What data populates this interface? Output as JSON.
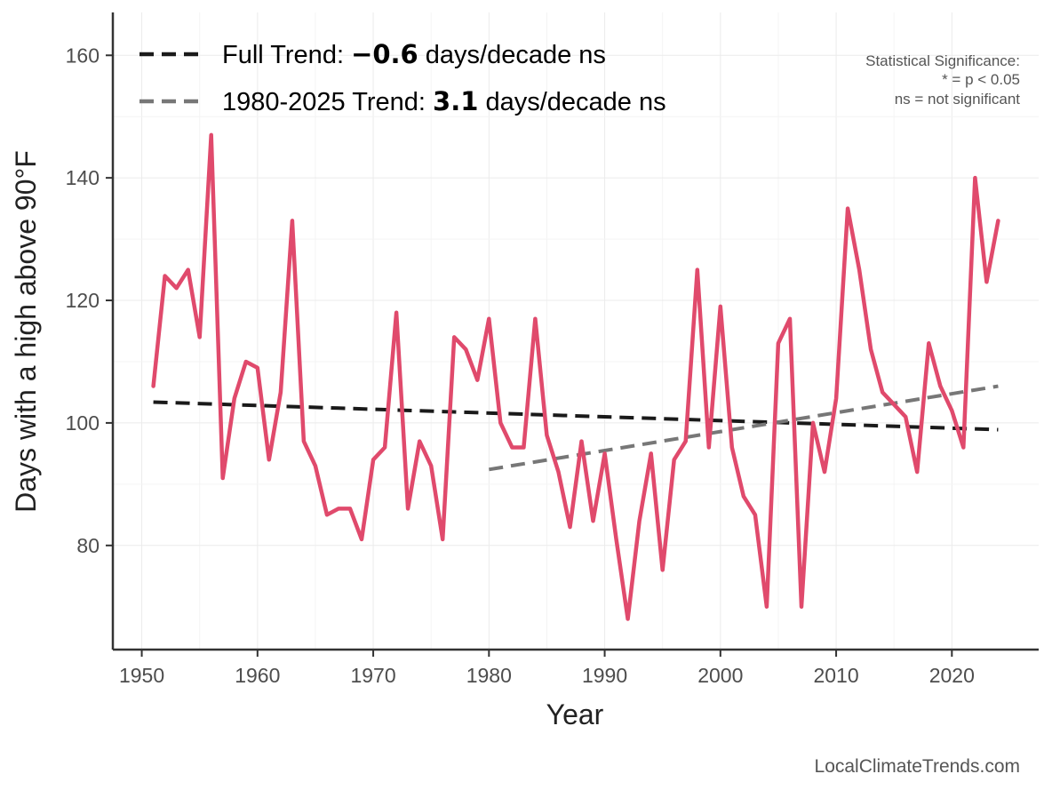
{
  "chart_data": {
    "type": "line",
    "xlabel": "Year",
    "ylabel": "Days with a high above 90°F",
    "xlim": [
      1947.5,
      2027.5
    ],
    "ylim": [
      63,
      167
    ],
    "x_ticks": [
      1950,
      1960,
      1970,
      1980,
      1990,
      2000,
      2010,
      2020
    ],
    "y_ticks": [
      80,
      100,
      120,
      140,
      160
    ],
    "grid": true,
    "legend_position": "top-left",
    "series": [
      {
        "color": "#e04a6c",
        "x": [
          1951,
          1952,
          1953,
          1954,
          1955,
          1956,
          1957,
          1958,
          1959,
          1960,
          1961,
          1962,
          1963,
          1964,
          1965,
          1966,
          1967,
          1968,
          1969,
          1970,
          1971,
          1972,
          1973,
          1974,
          1975,
          1976,
          1977,
          1978,
          1979,
          1980,
          1981,
          1982,
          1983,
          1984,
          1985,
          1986,
          1987,
          1988,
          1989,
          1990,
          1991,
          1992,
          1993,
          1994,
          1995,
          1996,
          1997,
          1998,
          1999,
          2000,
          2001,
          2002,
          2003,
          2004,
          2005,
          2006,
          2007,
          2008,
          2009,
          2010,
          2011,
          2012,
          2013,
          2014,
          2015,
          2016,
          2017,
          2018,
          2019,
          2020,
          2021,
          2022,
          2023,
          2024
        ],
        "y": [
          106,
          124,
          122,
          125,
          114,
          147,
          91,
          104,
          110,
          109,
          94,
          105,
          133,
          97,
          93,
          85,
          86,
          86,
          81,
          94,
          96,
          118,
          86,
          97,
          93,
          81,
          114,
          112,
          107,
          117,
          100,
          96,
          96,
          117,
          98,
          92,
          83,
          97,
          84,
          95,
          81,
          68,
          84,
          95,
          76,
          94,
          97,
          125,
          96,
          119,
          96,
          88,
          85,
          70,
          113,
          117,
          70,
          100,
          92,
          104,
          135,
          125,
          112,
          105,
          103,
          101,
          92,
          113,
          106,
          102,
          96,
          140,
          123,
          133
        ]
      }
    ],
    "trends": [
      {
        "label_prefix": "Full Trend: ",
        "value": "−0.6",
        "label_suffix": " days/decade ns",
        "color": "#1a1a1a",
        "x": [
          1951,
          2024
        ],
        "y": [
          103.4,
          98.9
        ]
      },
      {
        "label_prefix": "1980-2025 Trend: ",
        "value": "3.1",
        "label_suffix": " days/decade ns",
        "color": "#777777",
        "x": [
          1980,
          2024
        ],
        "y": [
          92.4,
          106.0
        ]
      }
    ],
    "annotations": {
      "significance": [
        "Statistical Significance:",
        "* = p < 0.05",
        "ns = not significant"
      ],
      "credit": "LocalClimateTrends.com"
    }
  }
}
